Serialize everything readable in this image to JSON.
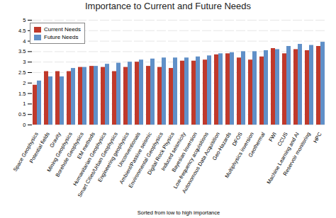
{
  "chart_data": {
    "type": "bar",
    "title": "Importance to Current and Future Needs",
    "xlabel": "Sorted from low to high importance",
    "categories": [
      "Space Geophysics",
      "Potential fields",
      "Gravity",
      "Mining Geophysics",
      "Borehole Geophysics",
      "EM methods",
      "Humanitarian Geophysics",
      "Smart Cities/Urban Geophysics",
      "Engineering geophysics",
      "Unconventionals",
      "Ambient/Passive seismic",
      "Environmental Geophysics",
      "Digital Rock Physics",
      "Induced seismicity",
      "Bayesian Inversion",
      "Low-frequency acquisitions",
      "Autonomous Data Acquisition",
      "Geo-Hazards",
      "DFOS",
      "Multiphysics inversion",
      "Geothermal",
      "FWI",
      "CCUS",
      "Machine Learning and AI",
      "Reservoir monitoring",
      "HPC"
    ],
    "series": [
      {
        "name": "Current Needs",
        "color": "#C0392B",
        "values": [
          1.9,
          2.55,
          2.55,
          2.55,
          2.75,
          2.8,
          2.75,
          2.55,
          2.75,
          3.0,
          2.8,
          2.75,
          2.7,
          3.05,
          3.05,
          3.1,
          3.35,
          3.4,
          3.2,
          3.1,
          3.25,
          3.65,
          3.4,
          3.6,
          3.55,
          3.75
        ]
      },
      {
        "name": "Future Needs",
        "color": "#6090C8",
        "values": [
          2.1,
          2.3,
          2.3,
          2.7,
          2.75,
          2.8,
          2.9,
          2.95,
          3.0,
          3.1,
          3.15,
          3.2,
          3.2,
          3.2,
          3.25,
          3.3,
          3.4,
          3.45,
          3.5,
          3.5,
          3.55,
          3.6,
          3.75,
          3.85,
          3.8,
          3.95
        ]
      }
    ],
    "ylim": [
      0,
      5
    ],
    "yticks": [
      0,
      0.5,
      1,
      1.5,
      2,
      2.5,
      3,
      3.5,
      4,
      4.5,
      5
    ],
    "grid": true,
    "legend": "upper left"
  }
}
